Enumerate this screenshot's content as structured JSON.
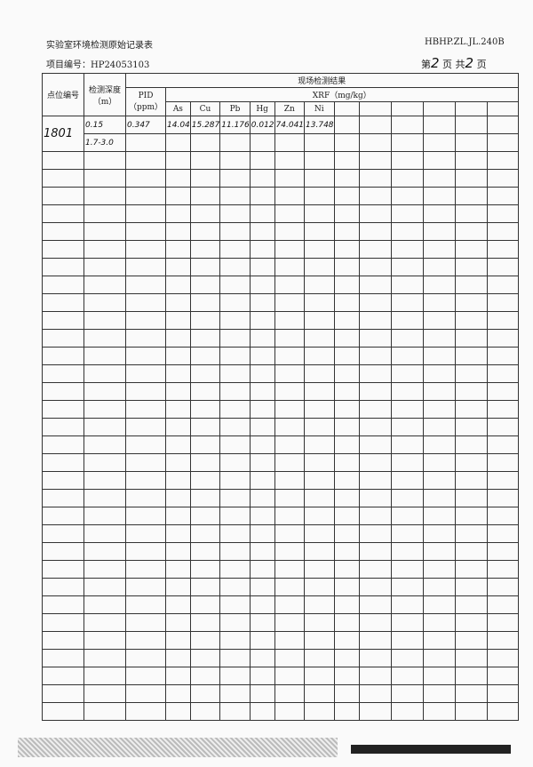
{
  "header": {
    "title": "实验室环境检测原始记录表",
    "form_code": "HBHP.ZL.JL.240B",
    "project_label": "项目编号：HP24053103",
    "page_prefix": "第",
    "page_current": "2",
    "page_mid": "页 共",
    "page_total": "2",
    "page_suffix": "页"
  },
  "table": {
    "col_point": "点位编号",
    "col_depth": "检测深度（m）",
    "col_results": "现场检测结果",
    "col_pid": "PID（ppm）",
    "col_xrf": "XRF（mg/kg）",
    "elements": [
      "As",
      "Cu",
      "Pb",
      "Hg",
      "Zn",
      "Ni",
      "",
      "",
      "",
      "",
      "",
      ""
    ],
    "point": "1801",
    "rows": [
      {
        "depth": "0.15",
        "pid": "0.347",
        "values": [
          "14.04",
          "15.287",
          "11.176",
          "0.012",
          "74.041",
          "13.748"
        ]
      },
      {
        "depth": "1.7-3.0",
        "pid": "",
        "values": []
      }
    ],
    "empty_rows": 32
  }
}
